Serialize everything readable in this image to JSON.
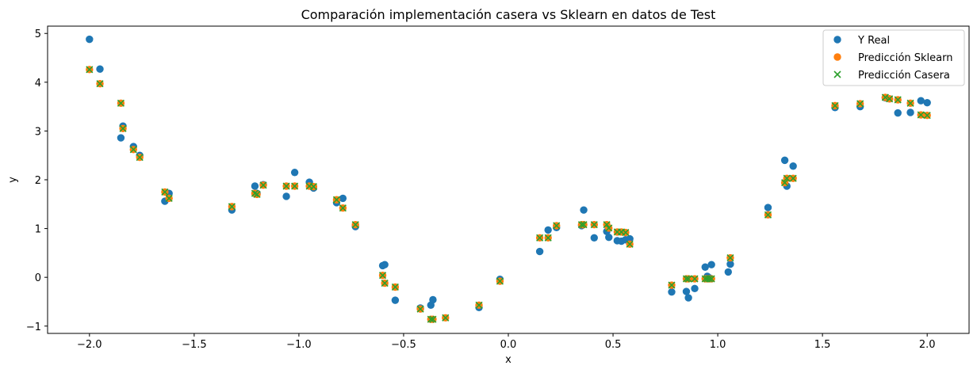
{
  "chart_data": {
    "type": "scatter",
    "title": "Comparación implementación casera vs Sklearn en datos de Test",
    "xlabel": "x",
    "ylabel": "y",
    "xlim": [
      -2.2,
      2.2
    ],
    "ylim": [
      -1.15,
      5.15
    ],
    "xticks": [
      -2.0,
      -1.5,
      -1.0,
      -0.5,
      0.0,
      0.5,
      1.0,
      1.5,
      2.0
    ],
    "xtick_labels": [
      "−2.0",
      "−1.5",
      "−1.0",
      "−0.5",
      "0.0",
      "0.5",
      "1.0",
      "1.5",
      "2.0"
    ],
    "yticks": [
      -1,
      0,
      1,
      2,
      3,
      4,
      5
    ],
    "ytick_labels": [
      "−1",
      "0",
      "1",
      "2",
      "3",
      "4",
      "5"
    ],
    "grid": false,
    "legend_position": "top-right",
    "series": [
      {
        "name": "Y Real",
        "marker": "circle",
        "color": "#1f77b4",
        "x": [
          -2.0,
          -1.95,
          -1.85,
          -1.84,
          -1.79,
          -1.76,
          -1.64,
          -1.62,
          -1.32,
          -1.21,
          -1.2,
          -1.17,
          -1.06,
          -1.02,
          -0.95,
          -0.93,
          -0.82,
          -0.79,
          -0.73,
          -0.6,
          -0.59,
          -0.54,
          -0.42,
          -0.37,
          -0.36,
          -0.14,
          -0.04,
          0.15,
          0.19,
          0.23,
          0.35,
          0.36,
          0.41,
          0.47,
          0.48,
          0.52,
          0.54,
          0.56,
          0.58,
          0.78,
          0.85,
          0.86,
          0.89,
          0.94,
          0.95,
          0.96,
          0.97,
          1.05,
          1.06,
          1.24,
          1.32,
          1.33,
          1.36,
          1.56,
          1.68,
          1.8,
          1.82,
          1.86,
          1.92,
          1.97,
          2.0
        ],
        "y": [
          4.88,
          4.27,
          2.86,
          3.1,
          2.68,
          2.5,
          1.56,
          1.72,
          1.38,
          1.87,
          1.72,
          1.9,
          1.66,
          2.15,
          1.95,
          1.83,
          1.53,
          1.62,
          1.04,
          0.24,
          0.26,
          -0.47,
          -0.63,
          -0.57,
          -0.46,
          -0.62,
          -0.04,
          0.53,
          0.97,
          1.02,
          1.06,
          1.38,
          0.81,
          0.94,
          0.82,
          0.75,
          0.74,
          0.77,
          0.79,
          -0.3,
          -0.29,
          -0.42,
          -0.23,
          0.21,
          0.02,
          -0.01,
          0.26,
          0.11,
          0.27,
          1.43,
          2.4,
          1.87,
          2.28,
          3.48,
          3.5,
          3.68,
          3.66,
          3.37,
          3.38,
          3.62,
          3.58
        ]
      },
      {
        "name": "Predicción Sklearn",
        "marker": "circle",
        "color": "#ff7f0e",
        "x": [
          -2.0,
          -1.95,
          -1.85,
          -1.84,
          -1.79,
          -1.76,
          -1.64,
          -1.62,
          -1.32,
          -1.21,
          -1.2,
          -1.17,
          -1.06,
          -1.02,
          -0.95,
          -0.93,
          -0.82,
          -0.79,
          -0.73,
          -0.6,
          -0.59,
          -0.54,
          -0.42,
          -0.37,
          -0.36,
          -0.3,
          -0.14,
          -0.04,
          0.15,
          0.19,
          0.23,
          0.35,
          0.36,
          0.41,
          0.47,
          0.48,
          0.52,
          0.54,
          0.56,
          0.58,
          0.78,
          0.85,
          0.86,
          0.89,
          0.94,
          0.95,
          0.96,
          0.97,
          1.06,
          1.24,
          1.32,
          1.33,
          1.36,
          1.56,
          1.68,
          1.8,
          1.82,
          1.86,
          1.92,
          1.97,
          2.0
        ],
        "y": [
          4.26,
          3.97,
          3.57,
          3.05,
          2.62,
          2.46,
          1.75,
          1.62,
          1.45,
          1.72,
          1.7,
          1.89,
          1.87,
          1.87,
          1.87,
          1.86,
          1.59,
          1.42,
          1.08,
          0.04,
          -0.12,
          -0.2,
          -0.65,
          -0.86,
          -0.86,
          -0.83,
          -0.57,
          -0.08,
          0.81,
          0.81,
          1.06,
          1.08,
          1.08,
          1.08,
          1.08,
          1.01,
          0.93,
          0.93,
          0.92,
          0.68,
          -0.16,
          -0.03,
          -0.03,
          -0.03,
          -0.03,
          -0.03,
          -0.03,
          -0.03,
          0.4,
          1.28,
          1.94,
          2.03,
          2.03,
          3.52,
          3.56,
          3.69,
          3.66,
          3.64,
          3.57,
          3.33,
          3.32
        ]
      },
      {
        "name": "Predicción Casera",
        "marker": "x",
        "color": "#2ca02c",
        "x": [
          -2.0,
          -1.95,
          -1.85,
          -1.84,
          -1.79,
          -1.76,
          -1.64,
          -1.62,
          -1.32,
          -1.21,
          -1.2,
          -1.17,
          -1.06,
          -1.02,
          -0.95,
          -0.93,
          -0.82,
          -0.79,
          -0.73,
          -0.6,
          -0.59,
          -0.54,
          -0.42,
          -0.37,
          -0.36,
          -0.3,
          -0.14,
          -0.04,
          0.15,
          0.19,
          0.23,
          0.35,
          0.36,
          0.41,
          0.47,
          0.48,
          0.52,
          0.54,
          0.56,
          0.58,
          0.78,
          0.85,
          0.86,
          0.89,
          0.94,
          0.95,
          0.96,
          0.97,
          1.06,
          1.24,
          1.32,
          1.33,
          1.36,
          1.56,
          1.68,
          1.8,
          1.82,
          1.86,
          1.92,
          1.97,
          2.0
        ],
        "y": [
          4.26,
          3.97,
          3.57,
          3.05,
          2.62,
          2.46,
          1.75,
          1.62,
          1.45,
          1.72,
          1.7,
          1.89,
          1.87,
          1.87,
          1.87,
          1.86,
          1.59,
          1.42,
          1.08,
          0.04,
          -0.12,
          -0.2,
          -0.65,
          -0.86,
          -0.86,
          -0.83,
          -0.57,
          -0.08,
          0.81,
          0.81,
          1.06,
          1.08,
          1.08,
          1.08,
          1.08,
          1.01,
          0.93,
          0.93,
          0.92,
          0.68,
          -0.16,
          -0.03,
          -0.03,
          -0.03,
          -0.03,
          -0.03,
          -0.03,
          -0.03,
          0.4,
          1.28,
          1.94,
          2.03,
          2.03,
          3.52,
          3.56,
          3.69,
          3.66,
          3.64,
          3.57,
          3.33,
          3.32
        ]
      }
    ]
  }
}
